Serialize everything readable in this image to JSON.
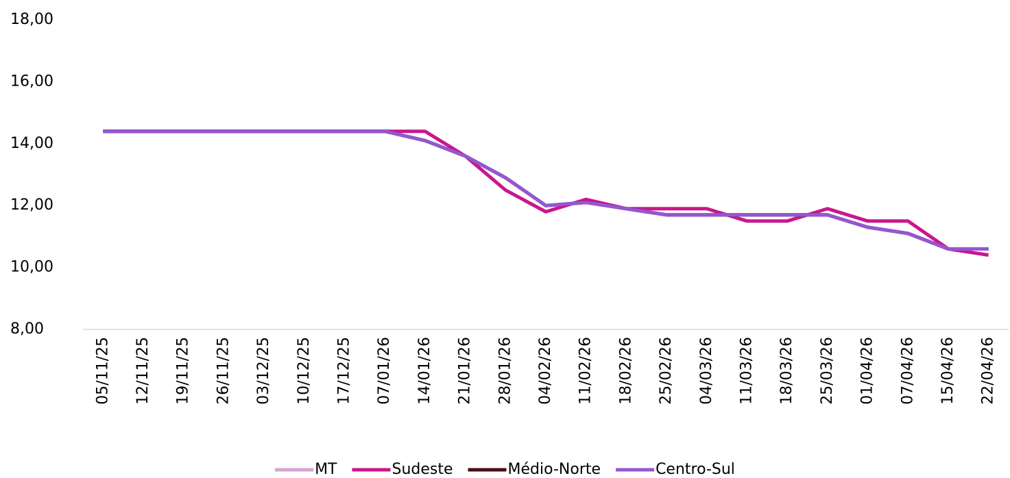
{
  "chart_data": {
    "type": "line",
    "categories": [
      "05/11/25",
      "12/11/25",
      "19/11/25",
      "26/11/25",
      "03/12/25",
      "10/12/25",
      "17/12/25",
      "07/01/26",
      "14/01/26",
      "21/01/26",
      "28/01/26",
      "04/02/26",
      "11/02/26",
      "18/02/26",
      "25/02/26",
      "04/03/26",
      "11/03/26",
      "18/03/26",
      "25/03/26",
      "01/04/26",
      "07/04/26",
      "15/04/26",
      "22/04/26"
    ],
    "series": [
      {
        "name": "MT",
        "color": "#d8a3d2",
        "values": [
          14.4,
          14.4,
          14.4,
          14.4,
          14.4,
          14.4,
          14.4,
          14.4,
          14.1,
          13.6,
          12.9,
          12.0,
          12.1,
          11.9,
          11.7,
          11.7,
          11.7,
          11.7,
          11.7,
          11.3,
          11.1,
          10.6,
          10.6
        ]
      },
      {
        "name": "Sudeste",
        "color": "#c8178d",
        "values": [
          14.4,
          14.4,
          14.4,
          14.4,
          14.4,
          14.4,
          14.4,
          14.4,
          14.4,
          13.6,
          12.5,
          11.8,
          12.2,
          11.9,
          11.9,
          11.9,
          11.5,
          11.5,
          11.9,
          11.5,
          11.5,
          10.6,
          10.4
        ]
      },
      {
        "name": "Médio-Norte",
        "color": "#4a0c14",
        "values": [
          14.4,
          14.4,
          14.4,
          14.4,
          14.4,
          14.4,
          14.4,
          14.4,
          14.1,
          13.6,
          12.9,
          12.0,
          12.1,
          11.9,
          11.7,
          11.7,
          11.7,
          11.7,
          11.7,
          11.3,
          11.1,
          10.6,
          10.6
        ]
      },
      {
        "name": "Centro-Sul",
        "color": "#9457d2",
        "values": [
          14.4,
          14.4,
          14.4,
          14.4,
          14.4,
          14.4,
          14.4,
          14.4,
          14.1,
          13.6,
          12.9,
          12.0,
          12.1,
          11.9,
          11.7,
          11.7,
          11.7,
          11.7,
          11.7,
          11.3,
          11.1,
          10.6,
          10.6
        ]
      }
    ],
    "ylim": [
      8,
      18
    ],
    "yticks": [
      {
        "value": 8,
        "label": "8,00"
      },
      {
        "value": 10,
        "label": "10,00"
      },
      {
        "value": 12,
        "label": "12,00"
      },
      {
        "value": 14,
        "label": "14,00"
      },
      {
        "value": 16,
        "label": "16,00"
      },
      {
        "value": 18,
        "label": "18,00"
      }
    ],
    "grid": false
  }
}
